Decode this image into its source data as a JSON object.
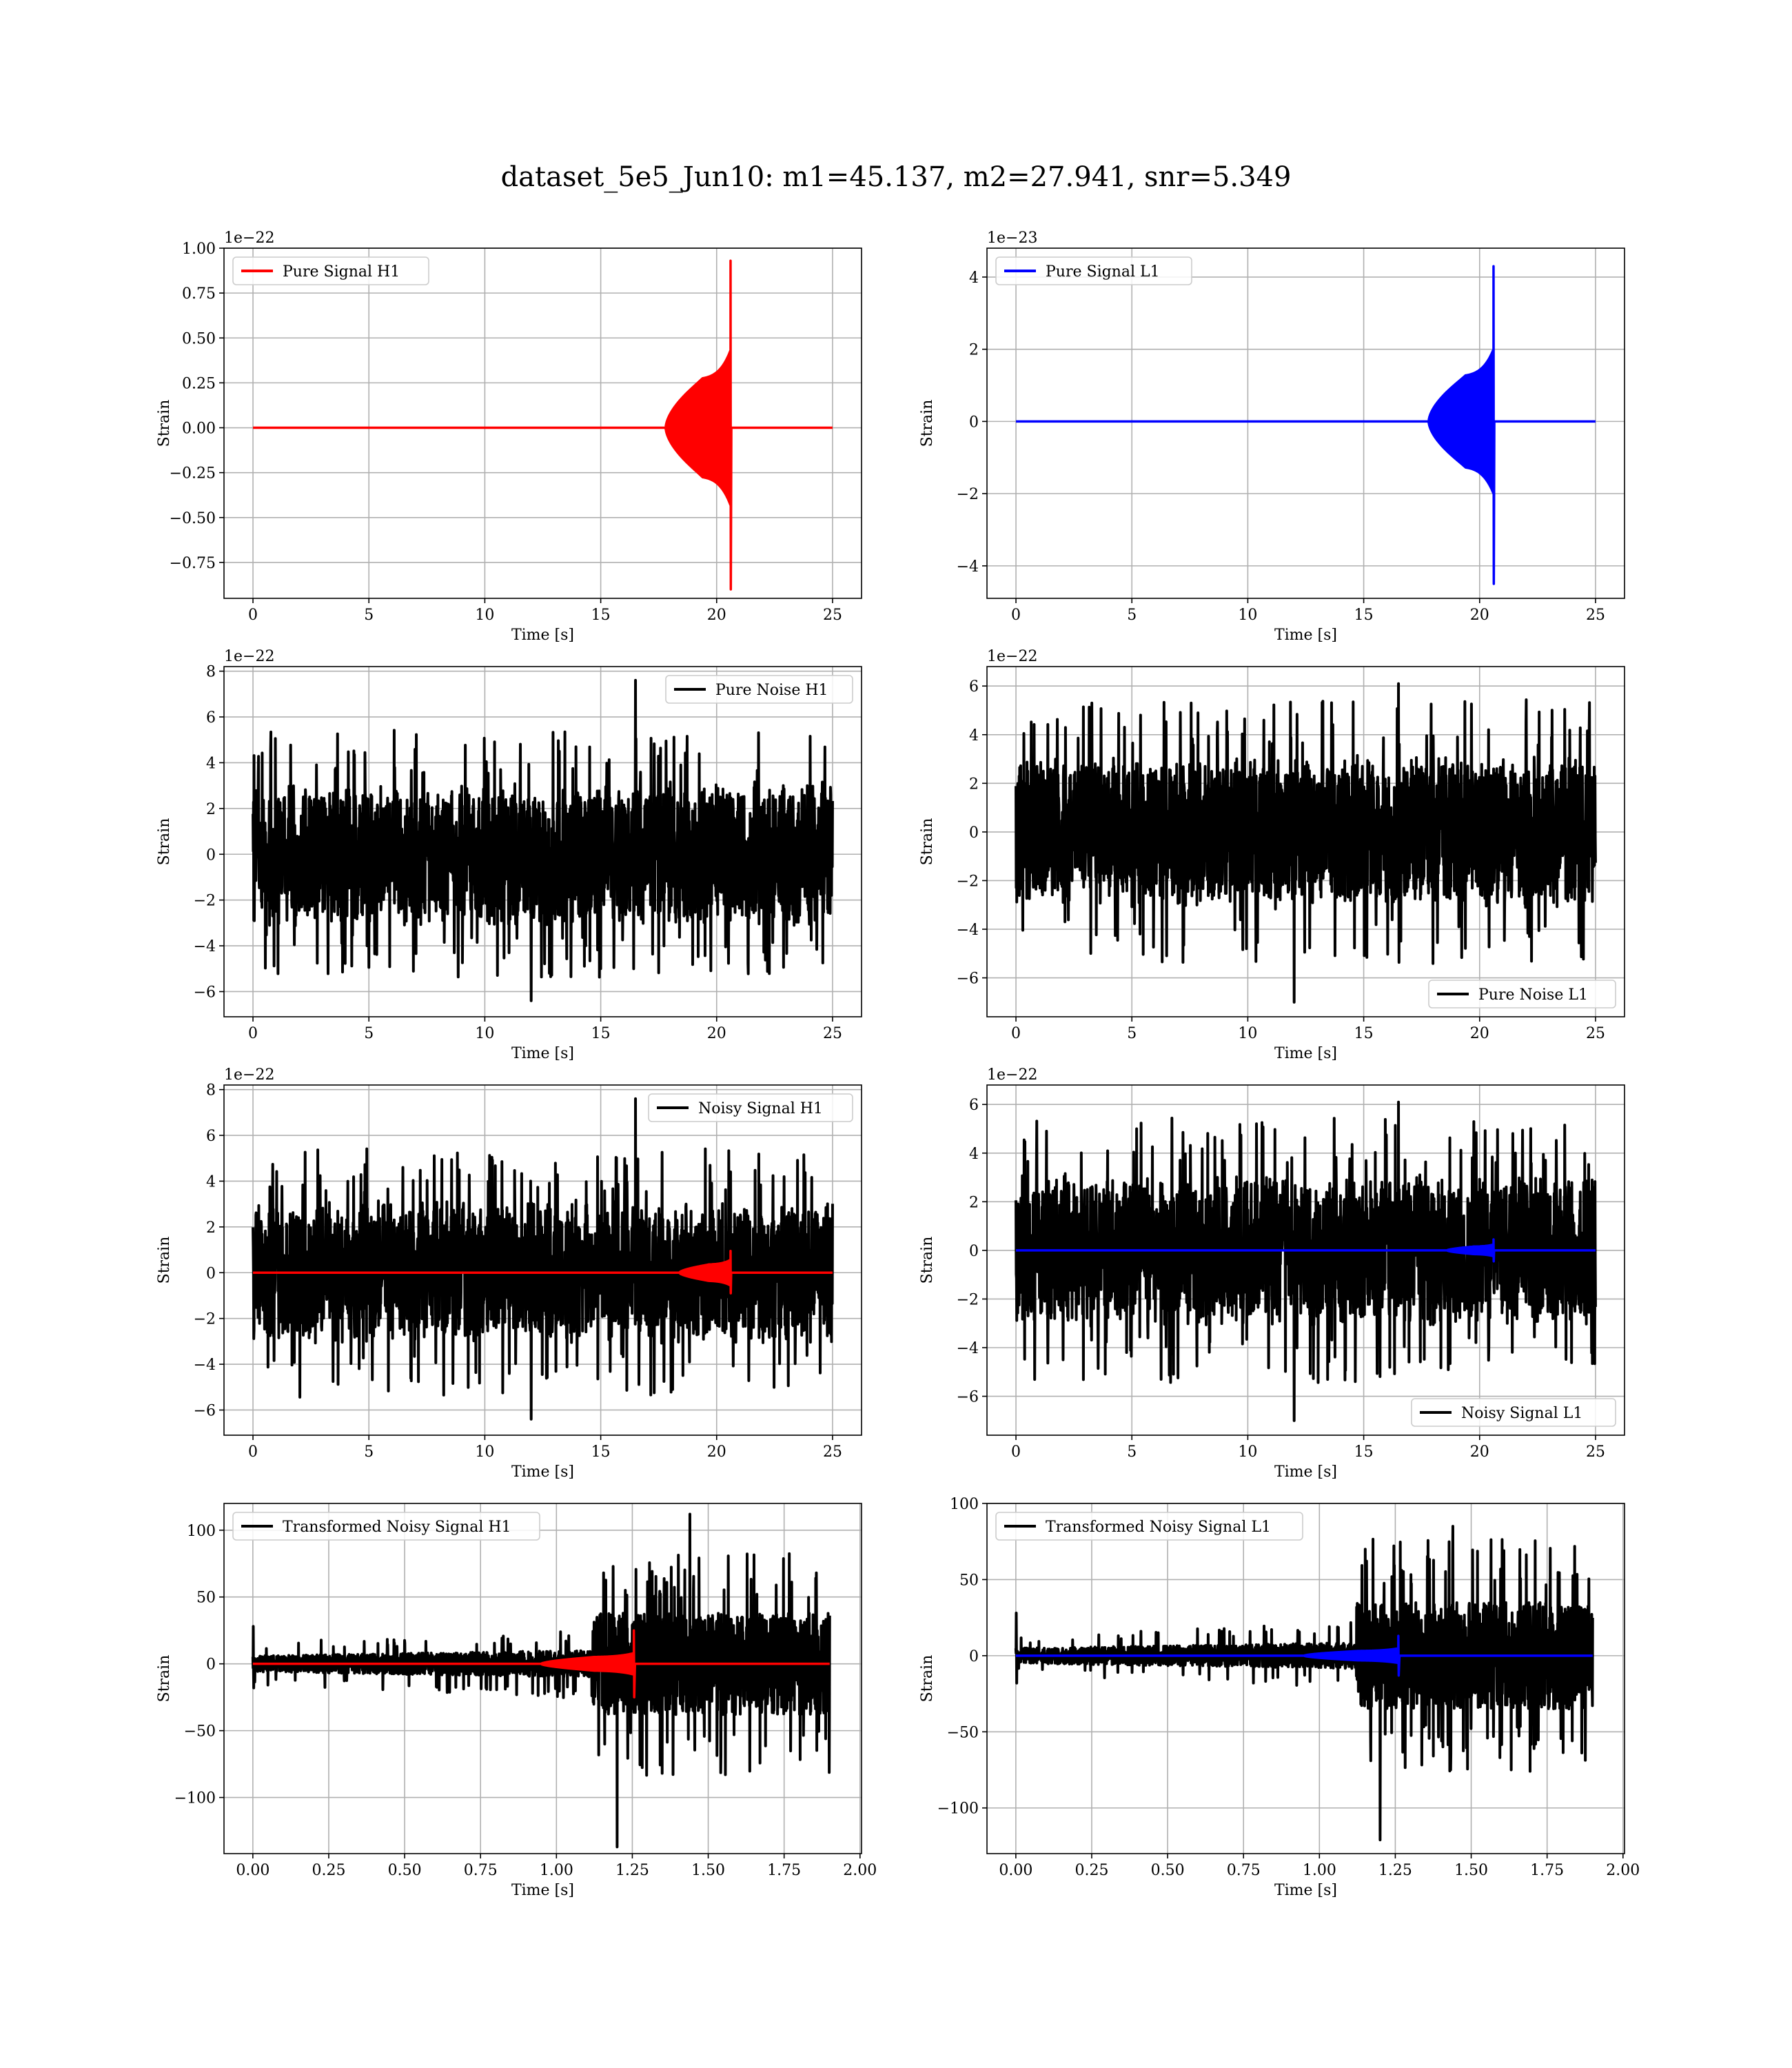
{
  "figure": {
    "suptitle": "dataset_5e5_Jun10: m1=45.137, m2=27.941, snr=5.349"
  },
  "chart_data": [
    {
      "id": "pure-signal-h1",
      "type": "line",
      "xlabel": "Time [s]",
      "ylabel": "Strain",
      "offset_text": "1e−22",
      "xlim": [
        -1.25,
        26.25
      ],
      "ylim": [
        -0.95,
        1.0
      ],
      "xticks": [
        0,
        5,
        10,
        15,
        20,
        25
      ],
      "xtick_labels": [
        "0",
        "5",
        "10",
        "15",
        "20",
        "25"
      ],
      "yticks": [
        -0.75,
        -0.5,
        -0.25,
        0,
        0.25,
        0.5,
        0.75,
        1.0
      ],
      "ytick_labels": [
        "−0.75",
        "−0.50",
        "−0.25",
        "0.00",
        "0.25",
        "0.50",
        "0.75",
        "1.00"
      ],
      "grid": true,
      "legend_loc": "upper-left",
      "series": [
        {
          "name": "Pure Signal H1",
          "color": "#ff0000",
          "kind": "chirp",
          "x_range": [
            0,
            25
          ],
          "onset": 17.8,
          "merger": 20.6,
          "peak_pos": 0.93,
          "peak_neg": -0.9,
          "plateau": 0.27
        }
      ]
    },
    {
      "id": "pure-signal-l1",
      "type": "line",
      "xlabel": "Time [s]",
      "ylabel": "Strain",
      "offset_text": "1e−23",
      "xlim": [
        -1.25,
        26.25
      ],
      "ylim": [
        -4.9,
        4.8
      ],
      "xticks": [
        0,
        5,
        10,
        15,
        20,
        25
      ],
      "xtick_labels": [
        "0",
        "5",
        "10",
        "15",
        "20",
        "25"
      ],
      "yticks": [
        -4,
        -2,
        0,
        2,
        4
      ],
      "ytick_labels": [
        "−4",
        "−2",
        "0",
        "2",
        "4"
      ],
      "grid": true,
      "legend_loc": "upper-left",
      "series": [
        {
          "name": "Pure Signal L1",
          "color": "#0000ff",
          "kind": "chirp",
          "x_range": [
            0,
            25
          ],
          "onset": 17.8,
          "merger": 20.6,
          "peak_pos": 4.3,
          "peak_neg": -4.5,
          "plateau": 1.25
        }
      ]
    },
    {
      "id": "pure-noise-h1",
      "type": "line",
      "xlabel": "Time [s]",
      "ylabel": "Strain",
      "offset_text": "1e−22",
      "xlim": [
        -1.25,
        26.25
      ],
      "ylim": [
        -7.1,
        8.2
      ],
      "xticks": [
        0,
        5,
        10,
        15,
        20,
        25
      ],
      "xtick_labels": [
        "0",
        "5",
        "10",
        "15",
        "20",
        "25"
      ],
      "yticks": [
        -6,
        -4,
        -2,
        0,
        2,
        4,
        6,
        8
      ],
      "ytick_labels": [
        "−6",
        "−4",
        "−2",
        "0",
        "2",
        "4",
        "6",
        "8"
      ],
      "grid": true,
      "legend_loc": "upper-right",
      "series": [
        {
          "name": "Pure Noise H1",
          "color": "#000000",
          "kind": "noise",
          "x_range": [
            0,
            25
          ],
          "band": 3.2,
          "max_spike": 7.6,
          "min_spike": -6.4
        }
      ]
    },
    {
      "id": "pure-noise-l1",
      "type": "line",
      "xlabel": "Time [s]",
      "ylabel": "Strain",
      "offset_text": "1e−22",
      "xlim": [
        -1.25,
        26.25
      ],
      "ylim": [
        -7.6,
        6.8
      ],
      "xticks": [
        0,
        5,
        10,
        15,
        20,
        25
      ],
      "xtick_labels": [
        "0",
        "5",
        "10",
        "15",
        "20",
        "25"
      ],
      "yticks": [
        -6,
        -4,
        -2,
        0,
        2,
        4,
        6
      ],
      "ytick_labels": [
        "−6",
        "−4",
        "−2",
        "0",
        "2",
        "4",
        "6"
      ],
      "grid": true,
      "legend_loc": "lower-right",
      "series": [
        {
          "name": "Pure Noise L1",
          "color": "#000000",
          "kind": "noise",
          "x_range": [
            0,
            25
          ],
          "band": 3.2,
          "max_spike": 6.1,
          "min_spike": -7.0
        }
      ]
    },
    {
      "id": "noisy-signal-h1",
      "type": "line",
      "xlabel": "Time [s]",
      "ylabel": "Strain",
      "offset_text": "1e−22",
      "xlim": [
        -1.25,
        26.25
      ],
      "ylim": [
        -7.1,
        8.2
      ],
      "xticks": [
        0,
        5,
        10,
        15,
        20,
        25
      ],
      "xtick_labels": [
        "0",
        "5",
        "10",
        "15",
        "20",
        "25"
      ],
      "yticks": [
        -6,
        -4,
        -2,
        0,
        2,
        4,
        6,
        8
      ],
      "ytick_labels": [
        "−6",
        "−4",
        "−2",
        "0",
        "2",
        "4",
        "6",
        "8"
      ],
      "grid": true,
      "legend_loc": "upper-right",
      "series": [
        {
          "name": "Noisy Signal H1",
          "color": "#000000",
          "kind": "noise",
          "x_range": [
            0,
            25
          ],
          "band": 3.2,
          "max_spike": 7.6,
          "min_spike": -6.4
        },
        {
          "name": "",
          "color": "#ff0000",
          "kind": "chirp",
          "x_range": [
            0,
            25
          ],
          "onset": 18.4,
          "merger": 20.6,
          "peak_pos": 0.95,
          "peak_neg": -0.9,
          "plateau": 0.35
        }
      ]
    },
    {
      "id": "noisy-signal-l1",
      "type": "line",
      "xlabel": "Time [s]",
      "ylabel": "Strain",
      "offset_text": "1e−22",
      "xlim": [
        -1.25,
        26.25
      ],
      "ylim": [
        -7.6,
        6.8
      ],
      "xticks": [
        0,
        5,
        10,
        15,
        20,
        25
      ],
      "xtick_labels": [
        "0",
        "5",
        "10",
        "15",
        "20",
        "25"
      ],
      "yticks": [
        -6,
        -4,
        -2,
        0,
        2,
        4,
        6
      ],
      "ytick_labels": [
        "−6",
        "−4",
        "−2",
        "0",
        "2",
        "4",
        "6"
      ],
      "grid": true,
      "legend_loc": "lower-right",
      "series": [
        {
          "name": "Noisy Signal L1",
          "color": "#000000",
          "kind": "noise",
          "x_range": [
            0,
            25
          ],
          "band": 3.2,
          "max_spike": 6.1,
          "min_spike": -7.0
        },
        {
          "name": "",
          "color": "#0000ff",
          "kind": "chirp",
          "x_range": [
            0,
            25
          ],
          "onset": 18.6,
          "merger": 20.6,
          "peak_pos": 0.45,
          "peak_neg": -0.45,
          "plateau": 0.15
        }
      ]
    },
    {
      "id": "transformed-noisy-signal-h1",
      "type": "line",
      "xlabel": "Time [s]",
      "ylabel": "Strain",
      "offset_text": "",
      "xlim": [
        -0.095,
        2.005
      ],
      "ylim": [
        -142,
        120
      ],
      "xticks": [
        0,
        0.25,
        0.5,
        0.75,
        1.0,
        1.25,
        1.5,
        1.75,
        2.0
      ],
      "xtick_labels": [
        "0.00",
        "0.25",
        "0.50",
        "0.75",
        "1.00",
        "1.25",
        "1.50",
        "1.75",
        "2.00"
      ],
      "yticks": [
        -100,
        -50,
        0,
        50,
        100
      ],
      "ytick_labels": [
        "−100",
        "−50",
        "0",
        "50",
        "100"
      ],
      "grid": true,
      "legend_loc": "upper-left",
      "series": [
        {
          "name": "Transformed Noisy Signal H1",
          "color": "#000000",
          "kind": "whitened",
          "x_range": [
            0,
            1.9
          ],
          "jump": 1.12,
          "low_band": 6,
          "high_band": 38,
          "max_spike": 112,
          "min_spike": -137
        },
        {
          "name": "",
          "color": "#ff0000",
          "kind": "chirp",
          "x_range": [
            0,
            1.9
          ],
          "onset": 0.95,
          "merger": 1.255,
          "peak_pos": 25,
          "peak_neg": -25,
          "plateau": 5
        }
      ]
    },
    {
      "id": "transformed-noisy-signal-l1",
      "type": "line",
      "xlabel": "Time [s]",
      "ylabel": "Strain",
      "offset_text": "",
      "xlim": [
        -0.095,
        2.005
      ],
      "ylim": [
        -130,
        100
      ],
      "xticks": [
        0,
        0.25,
        0.5,
        0.75,
        1.0,
        1.25,
        1.5,
        1.75,
        2.0
      ],
      "xtick_labels": [
        "0.00",
        "0.25",
        "0.50",
        "0.75",
        "1.00",
        "1.25",
        "1.50",
        "1.75",
        "2.00"
      ],
      "yticks": [
        -100,
        -50,
        0,
        50,
        100
      ],
      "ytick_labels": [
        "−100",
        "−50",
        "0",
        "50",
        "100"
      ],
      "grid": true,
      "legend_loc": "upper-left",
      "series": [
        {
          "name": "Transformed Noisy Signal L1",
          "color": "#000000",
          "kind": "whitened",
          "x_range": [
            0,
            1.9
          ],
          "jump": 1.12,
          "low_band": 5,
          "high_band": 35,
          "max_spike": 85,
          "min_spike": -121
        },
        {
          "name": "",
          "color": "#0000ff",
          "kind": "chirp",
          "x_range": [
            0,
            1.9
          ],
          "onset": 0.95,
          "merger": 1.26,
          "peak_pos": 13,
          "peak_neg": -13,
          "plateau": 3
        }
      ]
    }
  ]
}
